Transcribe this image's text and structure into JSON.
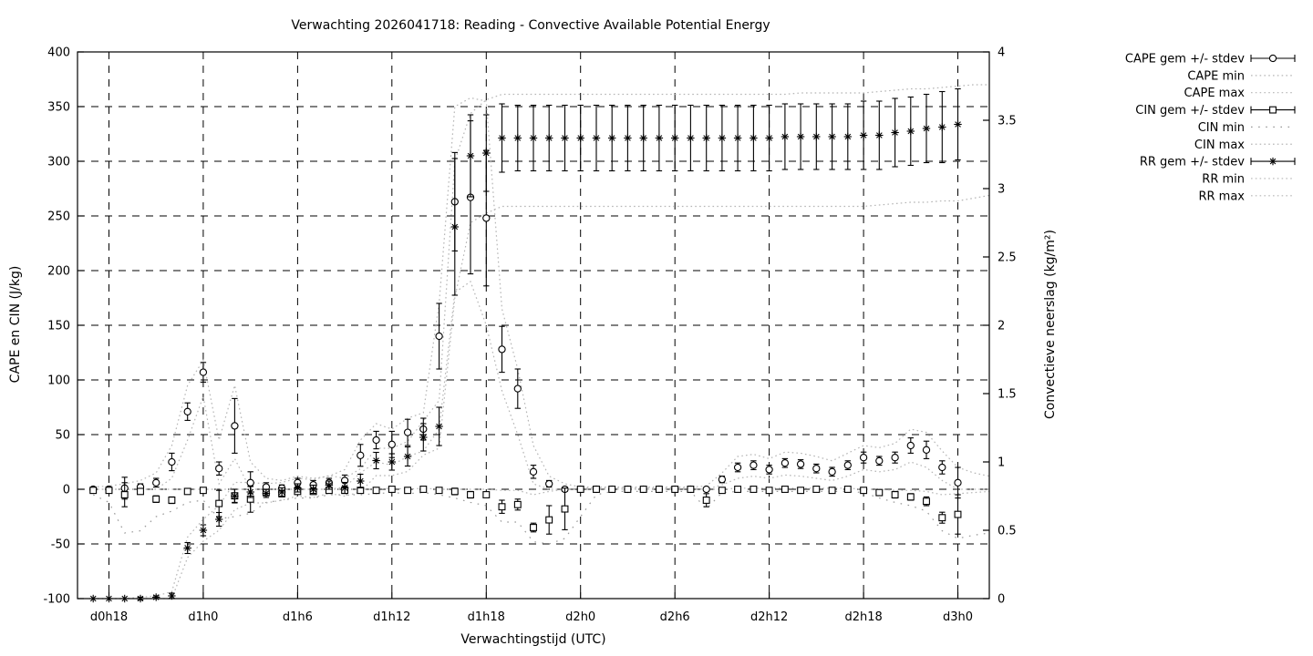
{
  "chart_data": {
    "type": "line",
    "title": "Verwachting 2026041718: Reading - Convective Available Potential Energy",
    "xlabel": "Verwachtingstijd (UTC)",
    "ylabel_left": "CAPE en CIN (J/kg)",
    "ylabel_right": "Convectieve neerslag (kg/m²)",
    "grid": true,
    "legend_position": "outside-right",
    "x_start_hour": 17,
    "x_range_hours": [
      16,
      74
    ],
    "yleft_range": [
      -100,
      400
    ],
    "yright_range": [
      0,
      4
    ],
    "yleft_ticks": [
      -100,
      -50,
      0,
      50,
      100,
      150,
      200,
      250,
      300,
      350,
      400
    ],
    "yright_ticks": [
      0,
      0.5,
      1,
      1.5,
      2,
      2.5,
      3,
      3.5,
      4
    ],
    "x_ticks": [
      {
        "t": 18,
        "label": "d0h18"
      },
      {
        "t": 24,
        "label": "d1h0"
      },
      {
        "t": 30,
        "label": "d1h6"
      },
      {
        "t": 36,
        "label": "d1h12"
      },
      {
        "t": 42,
        "label": "d1h18"
      },
      {
        "t": 48,
        "label": "d2h0"
      },
      {
        "t": 54,
        "label": "d2h6"
      },
      {
        "t": 60,
        "label": "d2h12"
      },
      {
        "t": 66,
        "label": "d2h18"
      },
      {
        "t": 72,
        "label": "d3h0"
      }
    ],
    "series": [
      {
        "name": "CAPE gem +/- stdev",
        "axis": "left",
        "style": "errorbar",
        "marker": "circle",
        "mean": [
          0,
          0,
          1,
          2,
          6,
          25,
          71,
          107,
          19,
          58,
          6,
          2,
          1,
          6,
          4,
          6,
          8,
          31,
          45,
          41,
          52,
          55,
          140,
          263,
          267,
          248,
          128,
          92,
          16,
          5,
          0,
          0,
          0,
          0,
          0,
          0,
          0,
          0,
          0,
          0,
          9,
          20,
          22,
          18,
          24,
          23,
          19,
          16,
          22,
          29,
          26,
          29,
          40,
          36,
          20,
          6,
          null,
          null
        ],
        "stdev": [
          2,
          2,
          10,
          3,
          4,
          8,
          8,
          9,
          6,
          25,
          10,
          4,
          3,
          4,
          4,
          4,
          5,
          10,
          8,
          12,
          12,
          10,
          30,
          45,
          70,
          62,
          21,
          18,
          6,
          3,
          2,
          1,
          1,
          1,
          1,
          1,
          1,
          1,
          1,
          1,
          3,
          4,
          4,
          4,
          4,
          4,
          4,
          4,
          4,
          5,
          4,
          5,
          7,
          8,
          6,
          14,
          null,
          null
        ]
      },
      {
        "name": "CAPE min",
        "axis": "left",
        "style": "dotted",
        "values": [
          0,
          0,
          0,
          0,
          0,
          10,
          45,
          85,
          5,
          28,
          0,
          0,
          0,
          0,
          0,
          0,
          2,
          15,
          25,
          22,
          30,
          35,
          55,
          180,
          190,
          150,
          90,
          50,
          5,
          0,
          0,
          0,
          0,
          0,
          0,
          0,
          0,
          0,
          0,
          0,
          4,
          10,
          12,
          10,
          13,
          12,
          10,
          8,
          12,
          18,
          16,
          18,
          25,
          20,
          8,
          0,
          0,
          0
        ]
      },
      {
        "name": "CAPE max",
        "axis": "left",
        "style": "dotted",
        "values": [
          2,
          3,
          5,
          8,
          15,
          40,
          95,
          118,
          45,
          95,
          25,
          10,
          8,
          12,
          10,
          12,
          18,
          45,
          60,
          55,
          65,
          70,
          170,
          350,
          358,
          355,
          165,
          110,
          40,
          12,
          5,
          2,
          2,
          2,
          2,
          2,
          2,
          2,
          2,
          3,
          15,
          30,
          32,
          28,
          34,
          33,
          30,
          26,
          33,
          40,
          38,
          42,
          55,
          52,
          35,
          20,
          15,
          12
        ]
      },
      {
        "name": "CIN gem +/- stdev",
        "axis": "left",
        "style": "errorbar",
        "marker": "square",
        "mean": [
          -1,
          -1,
          -5,
          -2,
          -9,
          -10,
          -2,
          -1,
          -13,
          -6,
          -9,
          -3,
          -4,
          -2,
          -2,
          -1,
          -1,
          -1,
          -1,
          0,
          -1,
          0,
          -1,
          -2,
          -5,
          -5,
          -16,
          -14,
          -35,
          -28,
          -18,
          0,
          0,
          0,
          0,
          0,
          0,
          0,
          0,
          -10,
          -1,
          0,
          0,
          -1,
          0,
          -1,
          0,
          -1,
          0,
          -1,
          -3,
          -5,
          -7,
          -11,
          -26,
          -23,
          null,
          null
        ],
        "stdev": [
          1,
          1,
          11,
          2,
          3,
          3,
          2,
          1,
          12,
          6,
          12,
          3,
          3,
          2,
          2,
          1,
          1,
          1,
          1,
          1,
          1,
          1,
          2,
          3,
          3,
          2,
          6,
          5,
          4,
          13,
          19,
          1,
          1,
          1,
          1,
          1,
          1,
          1,
          1,
          6,
          1,
          1,
          1,
          1,
          1,
          1,
          1,
          1,
          1,
          1,
          2,
          3,
          3,
          4,
          5,
          18,
          null,
          null
        ]
      },
      {
        "name": "CIN min",
        "axis": "left",
        "style": "dotted-sparse",
        "values": [
          -5,
          -12,
          -40,
          -38,
          -25,
          -20,
          -12,
          -10,
          -27,
          -25,
          -22,
          -12,
          -10,
          -8,
          -8,
          -5,
          -5,
          -5,
          -4,
          -3,
          -4,
          -3,
          -5,
          -8,
          -12,
          -15,
          -30,
          -30,
          -48,
          -50,
          -45,
          -25,
          -5,
          -2,
          -2,
          -2,
          -2,
          -2,
          -2,
          -18,
          -3,
          -2,
          -2,
          -2,
          -2,
          -2,
          -2,
          -2,
          -2,
          -3,
          -8,
          -12,
          -15,
          -20,
          -38,
          -45,
          -42,
          -40
        ]
      },
      {
        "name": "CIN max",
        "axis": "left",
        "style": "dotted",
        "values": [
          0,
          0,
          0,
          0,
          0,
          0,
          0,
          0,
          0,
          0,
          0,
          0,
          0,
          0,
          0,
          0,
          0,
          0,
          0,
          1,
          0,
          1,
          0,
          0,
          0,
          0,
          -1,
          -1,
          -5,
          -2,
          0,
          1,
          1,
          1,
          1,
          1,
          1,
          1,
          1,
          0,
          0,
          1,
          1,
          1,
          1,
          1,
          1,
          1,
          1,
          0,
          0,
          -1,
          -1,
          -2,
          -5,
          -4,
          -3,
          -2
        ]
      },
      {
        "name": "RR gem +/- stdev",
        "axis": "right",
        "style": "errorbar",
        "marker": "asterisk",
        "mean": [
          0,
          0,
          0,
          0,
          0.01,
          0.02,
          0.37,
          0.5,
          0.58,
          0.75,
          0.78,
          0.77,
          0.78,
          0.81,
          0.8,
          0.83,
          0.81,
          0.86,
          1.01,
          1.0,
          1.04,
          1.18,
          1.26,
          2.72,
          3.24,
          3.26,
          3.37,
          3.37,
          3.37,
          3.37,
          3.37,
          3.37,
          3.37,
          3.37,
          3.37,
          3.37,
          3.37,
          3.37,
          3.37,
          3.37,
          3.37,
          3.37,
          3.37,
          3.37,
          3.38,
          3.38,
          3.38,
          3.38,
          3.38,
          3.39,
          3.39,
          3.41,
          3.42,
          3.44,
          3.45,
          3.47,
          null,
          null
        ],
        "stdev": [
          0,
          0,
          0,
          0.01,
          0.01,
          0.02,
          0.04,
          0.04,
          0.05,
          0.05,
          0.04,
          0.03,
          0.03,
          0.03,
          0.03,
          0.03,
          0.04,
          0.05,
          0.06,
          0.06,
          0.07,
          0.1,
          0.14,
          0.5,
          0.3,
          0.28,
          0.25,
          0.24,
          0.24,
          0.24,
          0.24,
          0.24,
          0.24,
          0.24,
          0.24,
          0.24,
          0.24,
          0.24,
          0.24,
          0.24,
          0.24,
          0.24,
          0.24,
          0.24,
          0.24,
          0.24,
          0.24,
          0.24,
          0.24,
          0.25,
          0.25,
          0.25,
          0.25,
          0.25,
          0.26,
          0.26,
          null,
          null
        ]
      },
      {
        "name": "RR min",
        "axis": "right",
        "style": "dotted",
        "values": [
          0,
          0,
          0,
          0,
          0,
          0,
          0.3,
          0.42,
          0.5,
          0.65,
          0.7,
          0.7,
          0.72,
          0.75,
          0.74,
          0.77,
          0.75,
          0.78,
          0.9,
          0.9,
          0.93,
          1.05,
          1.1,
          2.2,
          2.75,
          2.82,
          2.87,
          2.87,
          2.87,
          2.87,
          2.87,
          2.87,
          2.87,
          2.87,
          2.87,
          2.87,
          2.87,
          2.87,
          2.87,
          2.87,
          2.87,
          2.87,
          2.87,
          2.87,
          2.87,
          2.87,
          2.87,
          2.87,
          2.87,
          2.87,
          2.88,
          2.89,
          2.9,
          2.9,
          2.91,
          2.91,
          2.93,
          2.95
        ]
      },
      {
        "name": "RR max",
        "axis": "right",
        "style": "dotted",
        "values": [
          0,
          0,
          0,
          0.01,
          0.02,
          0.05,
          0.45,
          0.58,
          0.68,
          0.85,
          0.85,
          0.84,
          0.85,
          0.88,
          0.87,
          0.9,
          0.88,
          0.95,
          1.1,
          1.1,
          1.15,
          1.3,
          1.45,
          3.2,
          3.55,
          3.65,
          3.69,
          3.69,
          3.69,
          3.69,
          3.69,
          3.69,
          3.69,
          3.69,
          3.69,
          3.69,
          3.69,
          3.69,
          3.69,
          3.69,
          3.69,
          3.69,
          3.69,
          3.69,
          3.69,
          3.7,
          3.7,
          3.7,
          3.7,
          3.7,
          3.71,
          3.72,
          3.73,
          3.73,
          3.74,
          3.75,
          3.76,
          3.76
        ]
      }
    ]
  },
  "colors": {
    "foreground": "#000000",
    "background": "#ffffff",
    "grid": "#000000",
    "dotted_curve": "#b5b5b5",
    "dotted_sparse_curve": "#999999"
  }
}
